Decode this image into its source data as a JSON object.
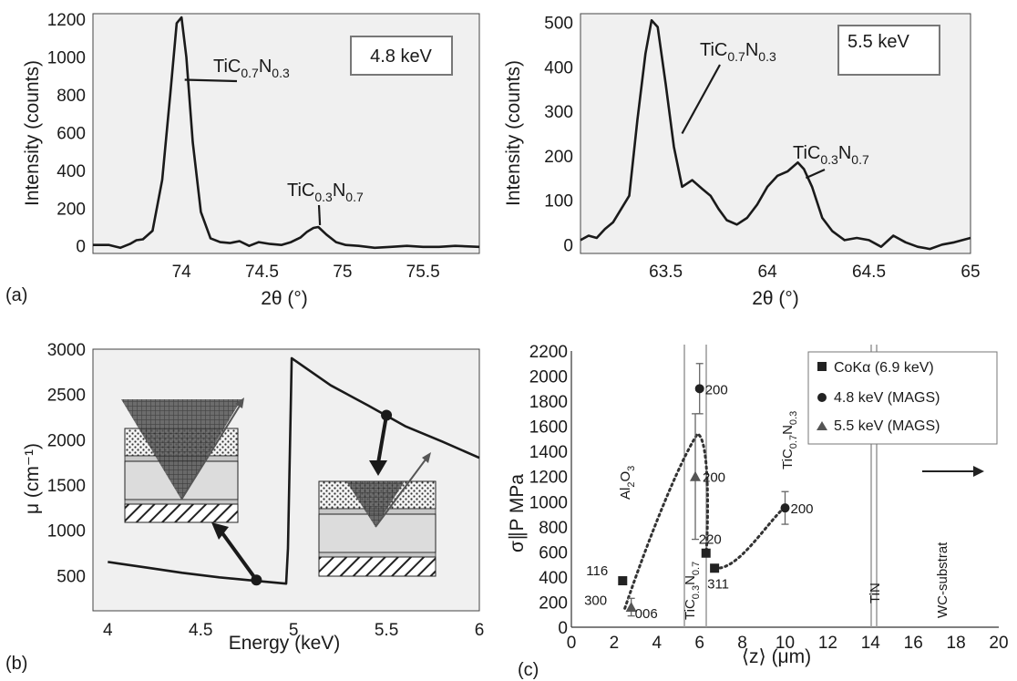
{
  "figure": {
    "panel_labels": [
      "(a)",
      "(b)",
      "(c)"
    ]
  },
  "chart_data": [
    {
      "id": "a1",
      "type": "line",
      "xlabel": "2θ (°)",
      "ylabel": "Intensity (counts)",
      "xlim": [
        73.45,
        75.85
      ],
      "ylim": [
        -40,
        1230
      ],
      "xticks": [
        74,
        74.5,
        75,
        75.5
      ],
      "yticks": [
        0,
        200,
        400,
        600,
        800,
        1000,
        1200
      ],
      "legend_box": "4.8 keV",
      "annotations": [
        {
          "base": "TiC",
          "sub1": "0.7",
          "mid": "N",
          "sub2": "0.3",
          "x": 74.0,
          "y": 880
        },
        {
          "base": "TiC",
          "sub1": "0.3",
          "mid": "N",
          "sub2": "0.7",
          "x": 74.85,
          "y": 260
        }
      ],
      "series": [
        {
          "x": [
            73.45,
            73.55,
            73.62,
            73.68,
            73.72,
            73.76,
            73.82,
            73.88,
            73.93,
            73.97,
            74.0,
            74.03,
            74.07,
            74.12,
            74.18,
            74.24,
            74.3,
            74.36,
            74.42,
            74.48,
            74.55,
            74.62,
            74.68,
            74.74,
            74.78,
            74.82,
            74.85,
            74.9,
            74.96,
            75.02,
            75.1,
            75.2,
            75.3,
            75.4,
            75.5,
            75.6,
            75.7,
            75.85
          ],
          "y": [
            5,
            5,
            -10,
            10,
            30,
            35,
            80,
            350,
            800,
            1180,
            1210,
            1000,
            550,
            180,
            40,
            20,
            15,
            25,
            0,
            20,
            10,
            5,
            20,
            45,
            75,
            95,
            100,
            60,
            20,
            5,
            0,
            -10,
            -5,
            0,
            -5,
            -5,
            0,
            -5
          ]
        }
      ]
    },
    {
      "id": "a2",
      "type": "line",
      "xlabel": "2θ (°)",
      "ylabel": "Intensity (counts)",
      "xlim": [
        63.08,
        65.0
      ],
      "ylim": [
        -20,
        520
      ],
      "xticks": [
        63.5,
        64,
        64.5,
        65
      ],
      "yticks": [
        0,
        100,
        200,
        300,
        400,
        500
      ],
      "legend_box": "5.5 keV",
      "annotations": [
        {
          "base": "TiC",
          "sub1": "0.7",
          "mid": "N",
          "sub2": "0.3",
          "x": 63.57,
          "y": 380
        },
        {
          "base": "TiC",
          "sub1": "0.3",
          "mid": "N",
          "sub2": "0.7",
          "x": 64.22,
          "y": 160
        }
      ],
      "series": [
        {
          "x": [
            63.08,
            63.12,
            63.16,
            63.2,
            63.24,
            63.28,
            63.32,
            63.36,
            63.4,
            63.43,
            63.46,
            63.5,
            63.54,
            63.58,
            63.63,
            63.68,
            63.72,
            63.76,
            63.8,
            63.85,
            63.9,
            63.95,
            64.0,
            64.05,
            64.1,
            64.15,
            64.18,
            64.22,
            64.27,
            64.32,
            64.38,
            64.44,
            64.5,
            64.56,
            64.62,
            64.68,
            64.74,
            64.8,
            64.86,
            64.92,
            65.0
          ],
          "y": [
            10,
            20,
            15,
            35,
            50,
            80,
            110,
            280,
            430,
            505,
            490,
            360,
            220,
            130,
            145,
            125,
            110,
            80,
            55,
            45,
            60,
            90,
            130,
            155,
            165,
            185,
            170,
            130,
            60,
            30,
            10,
            15,
            10,
            -5,
            20,
            5,
            -5,
            -10,
            0,
            5,
            15
          ]
        }
      ]
    },
    {
      "id": "b",
      "type": "line",
      "xlabel": "Energy (keV)",
      "ylabel": "μ (cm⁻¹)",
      "xlim": [
        3.92,
        6.0
      ],
      "ylim": [
        110,
        3000
      ],
      "xticks": [
        4,
        4.5,
        5,
        5.5,
        6
      ],
      "yticks": [
        500,
        1000,
        1500,
        2000,
        2500,
        3000
      ],
      "markers": [
        {
          "x": 4.8,
          "y": 450
        },
        {
          "x": 5.5,
          "y": 2270
        }
      ],
      "series": [
        {
          "x": [
            4.0,
            4.2,
            4.4,
            4.6,
            4.8,
            4.96,
            4.97,
            4.99,
            5.2,
            5.4,
            5.6,
            5.8,
            6.0
          ],
          "y": [
            650,
            590,
            530,
            480,
            440,
            410,
            800,
            2900,
            2600,
            2380,
            2150,
            1980,
            1800
          ]
        }
      ]
    },
    {
      "id": "c",
      "type": "scatter",
      "xlabel": "⟨z⟩ (μm)",
      "ylabel": "σ∥P MPa",
      "xlim": [
        0,
        20
      ],
      "ylim": [
        0,
        2200
      ],
      "xticks": [
        0,
        2,
        4,
        6,
        8,
        10,
        12,
        14,
        16,
        18,
        20
      ],
      "yticks": [
        0,
        200,
        400,
        600,
        800,
        1000,
        1200,
        1400,
        1600,
        1800,
        2000,
        2200
      ],
      "legend_position": "top-right",
      "legend": [
        "CoKα (6.9 keV)",
        "4.8 keV (MAGS)",
        "5.5 keV (MAGS)"
      ],
      "series": [
        {
          "name": "CoKα (6.9 keV)",
          "marker": "square",
          "points": [
            {
              "x": 2.4,
              "y": 370,
              "label": "116"
            },
            {
              "x": 6.3,
              "y": 590,
              "label": "220"
            },
            {
              "x": 6.7,
              "y": 470,
              "label": "311"
            }
          ]
        },
        {
          "name": "4.8 keV (MAGS)",
          "marker": "circle",
          "points": [
            {
              "x": 6.0,
              "y": 1900,
              "label": "200",
              "err": 200
            },
            {
              "x": 10.0,
              "y": 950,
              "label": "200",
              "err": 130
            }
          ]
        },
        {
          "name": "5.5 keV (MAGS)",
          "marker": "triangle",
          "points": [
            {
              "x": 2.8,
              "y": 160,
              "label": "006",
              "err": 70
            },
            {
              "x": 5.8,
              "y": 1200,
              "label": "200",
              "err": 500
            }
          ]
        }
      ],
      "extra_labels": [
        {
          "text": "300",
          "x": 0.6,
          "y": 230
        }
      ],
      "layers": [
        {
          "base": "Al",
          "sub1": "2",
          "mid": "O",
          "sub2": "3"
        },
        {
          "base": "TiC",
          "sub1": "0.3",
          "mid": "N",
          "sub2": "0.7"
        },
        {
          "base": "TiC",
          "sub1": "0.7",
          "mid": "N",
          "sub2": "0.3"
        },
        {
          "base": "TiN"
        },
        {
          "base": "WC-substrat"
        }
      ]
    }
  ]
}
